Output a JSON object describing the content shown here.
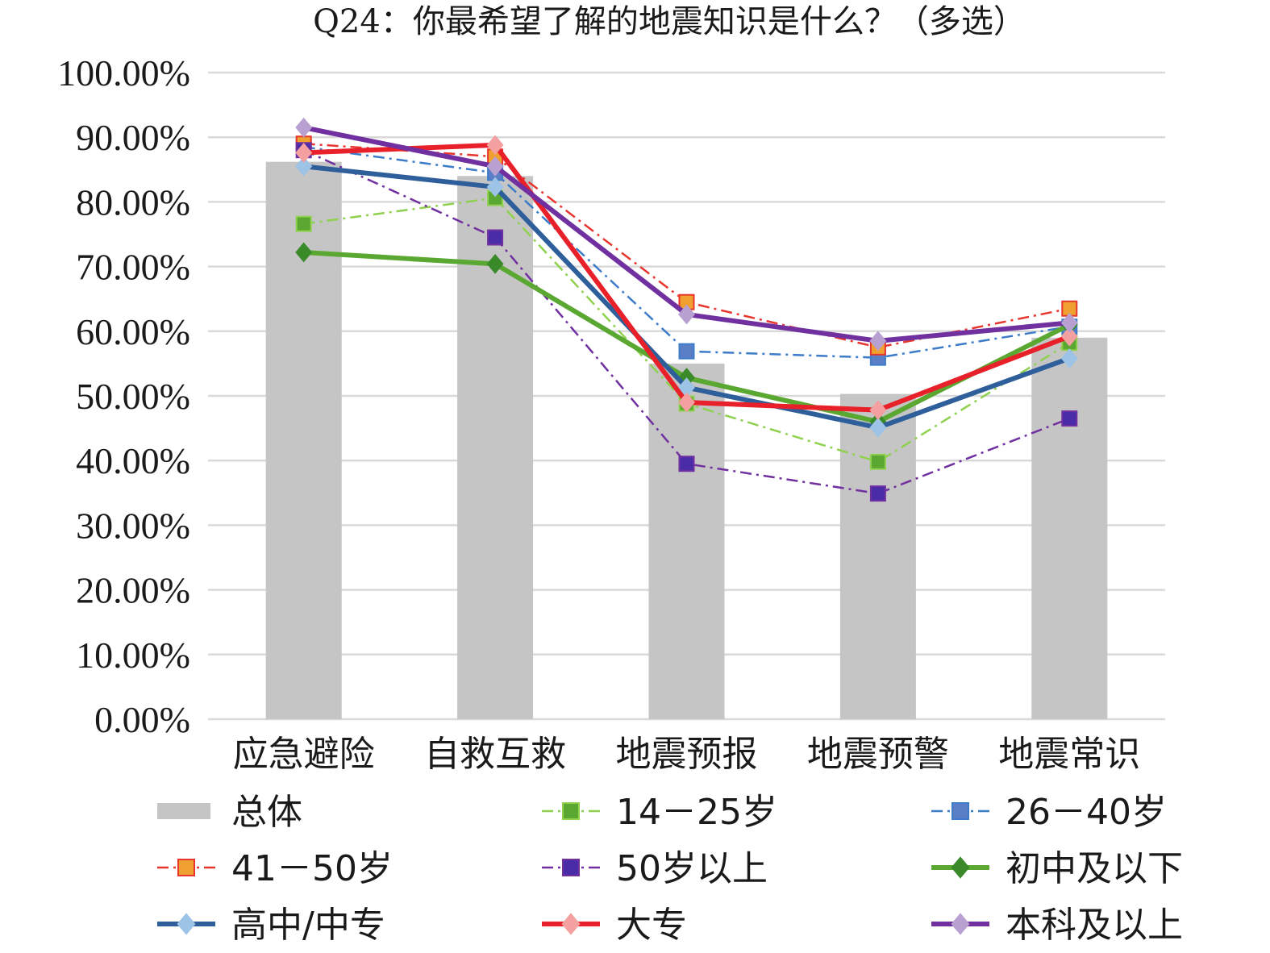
{
  "chart_data": {
    "type": "bar",
    "title": "Q24：你最希望了解的地震知识是什么？（多选）",
    "categories": [
      "应急避险",
      "自救互救",
      "地震预报",
      "地震预警",
      "地震常识"
    ],
    "ylim": [
      0,
      100
    ],
    "yticks": [
      "0.00%",
      "10.00%",
      "20.00%",
      "30.00%",
      "40.00%",
      "50.00%",
      "60.00%",
      "70.00%",
      "80.00%",
      "90.00%",
      "100.00%"
    ],
    "grid": true,
    "legend_position": "bottom",
    "bar_series": {
      "name": "总体",
      "values": [
        86.2,
        84.0,
        55.0,
        50.3,
        59.0
      ],
      "color": "#c6c5c6"
    },
    "series": [
      {
        "name": "14－25岁",
        "values": [
          76.6,
          80.6,
          48.8,
          39.8,
          58.2
        ],
        "color": "#8fd14f",
        "marker_color": "#5aa832",
        "style": "dashdot",
        "marker": "square",
        "thick": false
      },
      {
        "name": "26－40岁",
        "values": [
          88.5,
          84.5,
          56.9,
          55.9,
          60.7
        ],
        "color": "#3d7cc9",
        "marker_color": "#5b7fc7",
        "style": "dashdot",
        "marker": "square",
        "thick": false
      },
      {
        "name": "41－50岁",
        "values": [
          89.0,
          87.0,
          64.5,
          57.5,
          63.5
        ],
        "color": "#e8362f",
        "marker_color": "#f0a030",
        "style": "dashdot",
        "marker": "square",
        "thick": false
      },
      {
        "name": "50岁以上",
        "values": [
          88.0,
          74.5,
          39.5,
          34.9,
          46.5
        ],
        "color": "#7030a0",
        "marker_color": "#4a2ba8",
        "style": "dashdot",
        "marker": "square",
        "thick": false
      },
      {
        "name": "初中及以下",
        "values": [
          72.2,
          70.4,
          52.8,
          46.0,
          61.0
        ],
        "color": "#5aa832",
        "marker_color": "#3a8a2a",
        "style": "solid",
        "marker": "diamond",
        "thick": true
      },
      {
        "name": "高中/中专",
        "values": [
          85.5,
          82.3,
          51.3,
          45.1,
          55.8
        ],
        "color": "#2f5f9b",
        "marker_color": "#9dc3e6",
        "style": "solid",
        "marker": "diamond",
        "thick": true
      },
      {
        "name": "大专",
        "values": [
          87.6,
          88.8,
          49.0,
          47.8,
          59.2
        ],
        "color": "#e8202a",
        "marker_color": "#f4a0a0",
        "style": "solid",
        "marker": "diamond",
        "thick": true
      },
      {
        "name": "本科及以上",
        "values": [
          91.5,
          85.5,
          62.6,
          58.5,
          61.3
        ],
        "color": "#7030a0",
        "marker_color": "#b8a0d0",
        "style": "solid",
        "marker": "diamond",
        "thick": true
      }
    ]
  }
}
